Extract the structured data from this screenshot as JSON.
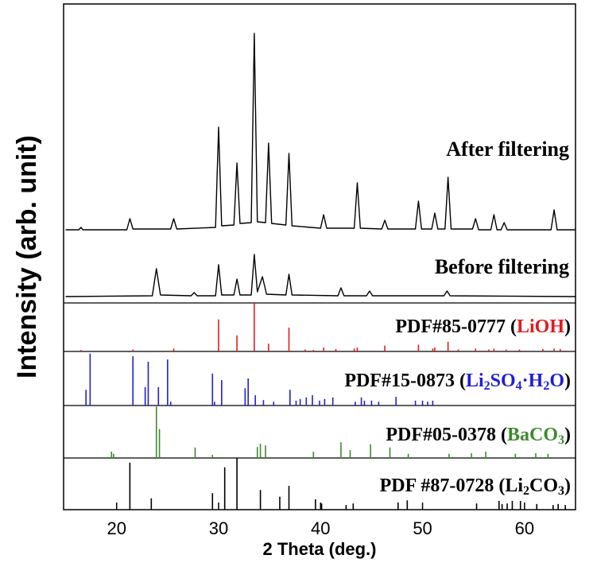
{
  "chart_data": [
    {
      "type": "line",
      "ylabel": "Intensity (arb. unit)",
      "xlabel": "2 Theta (deg.)",
      "xlim": [
        14.8,
        65
      ],
      "xticks": [
        20,
        30,
        40,
        50,
        60
      ],
      "ylim": [
        0,
        376
      ],
      "series": [
        {
          "name": "After filtering",
          "color": "#000000",
          "x": [
            15,
            16.3,
            16.5,
            16.7,
            21.0,
            21.3,
            21.6,
            25.3,
            25.6,
            25.9,
            29.7,
            30.0,
            30.3,
            31.5,
            31.8,
            32.1,
            33.2,
            33.5,
            33.8,
            34.6,
            34.9,
            35.2,
            36.6,
            36.9,
            37.2,
            40.0,
            40.3,
            40.6,
            43.3,
            43.6,
            43.9,
            46.0,
            46.3,
            46.6,
            49.3,
            49.6,
            49.9,
            50.9,
            51.2,
            51.5,
            52.2,
            52.5,
            52.8,
            54.9,
            55.2,
            55.5,
            56.7,
            57.0,
            57.3,
            57.7,
            58.0,
            58.3,
            62.6,
            62.9,
            63.2,
            65
          ],
          "values": [
            92,
            92,
            95,
            92,
            92,
            106,
            93,
            93,
            106,
            93,
            95,
            221,
            97,
            98,
            176,
            100,
            101,
            339,
            102,
            101,
            201,
            100,
            98,
            188,
            97,
            94,
            111,
            94,
            94,
            151,
            94,
            93,
            104,
            93,
            93,
            128,
            93,
            93,
            113,
            93,
            93,
            158,
            93,
            93,
            106,
            92,
            92,
            111,
            92,
            92,
            101,
            92,
            92,
            117,
            92,
            92
          ]
        },
        {
          "name": "Before filtering",
          "color": "#000000",
          "x": [
            15,
            23.5,
            23.9,
            24.3,
            27.3,
            27.6,
            27.9,
            29.7,
            30.0,
            30.3,
            31.5,
            31.8,
            32.1,
            33.2,
            33.5,
            33.8,
            34.3,
            34.7,
            36.6,
            36.9,
            37.2,
            41.7,
            42.0,
            42.3,
            44.5,
            44.8,
            45.1,
            52.1,
            52.4,
            52.7,
            65
          ],
          "values": [
            8,
            9,
            43,
            10,
            9,
            13,
            9,
            9,
            48,
            10,
            10,
            30,
            10,
            10,
            61,
            14,
            33,
            11,
            10,
            36,
            10,
            9,
            19,
            9,
            9,
            15,
            9,
            9,
            15,
            9,
            8
          ]
        }
      ]
    },
    {
      "type": "stick",
      "color": "#e41a1c",
      "xlim": [
        14.8,
        65
      ],
      "ylim": [
        0,
        100
      ],
      "label": [
        {
          "text": "PDF#85-0777 ("
        },
        {
          "text": "LiOH",
          "colored": true
        },
        {
          "text": ")"
        }
      ],
      "x": [
        16.5,
        21.6,
        25.6,
        30.0,
        31.8,
        33.5,
        34.9,
        36.9,
        38.5,
        39.3,
        40.3,
        41.5,
        43.3,
        43.6,
        46.3,
        49.6,
        51.0,
        51.2,
        52.5,
        53.5,
        55.2,
        56.5,
        57.0,
        58.2,
        59.5,
        61.8,
        62.9,
        63.5
      ],
      "values": [
        3,
        4,
        6,
        66,
        33,
        100,
        16,
        49,
        4,
        3,
        8,
        5,
        6,
        8,
        12,
        14,
        6,
        8,
        20,
        4,
        6,
        4,
        6,
        4,
        4,
        5,
        6,
        5
      ]
    },
    {
      "type": "stick",
      "color": "#1f1fd6",
      "xlim": [
        14.8,
        65
      ],
      "ylim": [
        0,
        100
      ],
      "label": [
        {
          "text": "PDF#15-0873 ("
        },
        {
          "text": "Li",
          "colored": true
        },
        {
          "text": "2",
          "colored": true,
          "sub": true
        },
        {
          "text": "SO",
          "colored": true
        },
        {
          "text": "4",
          "colored": true,
          "sub": true
        },
        {
          "text": "·H",
          "colored": true
        },
        {
          "text": "2",
          "colored": true,
          "sub": true
        },
        {
          "text": "O",
          "colored": true
        },
        {
          "text": ")"
        }
      ],
      "x": [
        17.0,
        17.4,
        21.6,
        22.8,
        23.1,
        24.1,
        25.0,
        25.3,
        29.4,
        29.6,
        30.3,
        32.6,
        32.9,
        33.6,
        34.4,
        35.4,
        37.0,
        37.6,
        38.0,
        38.6,
        39.2,
        39.9,
        40.4,
        41.2,
        43.4,
        44.0,
        44.3,
        45.0,
        45.7,
        47.4,
        49.3,
        50.0,
        50.5,
        51.0
      ],
      "values": [
        29,
        96,
        91,
        34,
        81,
        34,
        85,
        7,
        59,
        7,
        47,
        32,
        50,
        19,
        10,
        7,
        29,
        9,
        12,
        15,
        19,
        9,
        12,
        15,
        7,
        15,
        9,
        9,
        7,
        16,
        9,
        9,
        7,
        9
      ]
    },
    {
      "type": "stick",
      "color": "#3d8b2c",
      "xlim": [
        14.8,
        65
      ],
      "ylim": [
        0,
        100
      ],
      "label": [
        {
          "text": "PDF#05-0378 ("
        },
        {
          "text": "BaCO",
          "colored": true
        },
        {
          "text": "3",
          "colored": true,
          "sub": true
        },
        {
          "text": ")"
        }
      ],
      "x": [
        19.5,
        19.7,
        23.9,
        24.2,
        27.7,
        29.4,
        33.8,
        34.1,
        34.6,
        39.3,
        42.0,
        42.9,
        44.9,
        46.8,
        48.6,
        52.6,
        54.8,
        56.2,
        59.1,
        61.1,
        62.3
      ],
      "values": [
        12,
        8,
        98,
        55,
        20,
        6,
        21,
        27,
        24,
        12,
        30,
        15,
        26,
        20,
        8,
        8,
        9,
        12,
        8,
        9,
        8
      ]
    },
    {
      "type": "stick",
      "color": "#000000",
      "xlim": [
        14.8,
        65
      ],
      "ylim": [
        0,
        100
      ],
      "label": [
        {
          "text": "PDF #87-0728 (Li"
        },
        {
          "text": "2",
          "sub": true
        },
        {
          "text": "CO"
        },
        {
          "text": "3",
          "sub": true
        },
        {
          "text": ")"
        }
      ],
      "x": [
        21.3,
        23.4,
        29.4,
        30.6,
        31.8,
        34.1,
        36.0,
        36.9,
        39.5,
        40.1,
        42.5,
        43.2,
        47.6,
        48.5,
        55.3,
        57.5,
        57.8,
        58.3,
        58.8,
        59.6,
        61.2,
        62.8,
        63.3,
        64.0
      ],
      "values": [
        91,
        22,
        32,
        82,
        100,
        38,
        25,
        46,
        20,
        12,
        9,
        12,
        14,
        18,
        12,
        17,
        11,
        12,
        17,
        17,
        11,
        9,
        11,
        9
      ]
    }
  ]
}
